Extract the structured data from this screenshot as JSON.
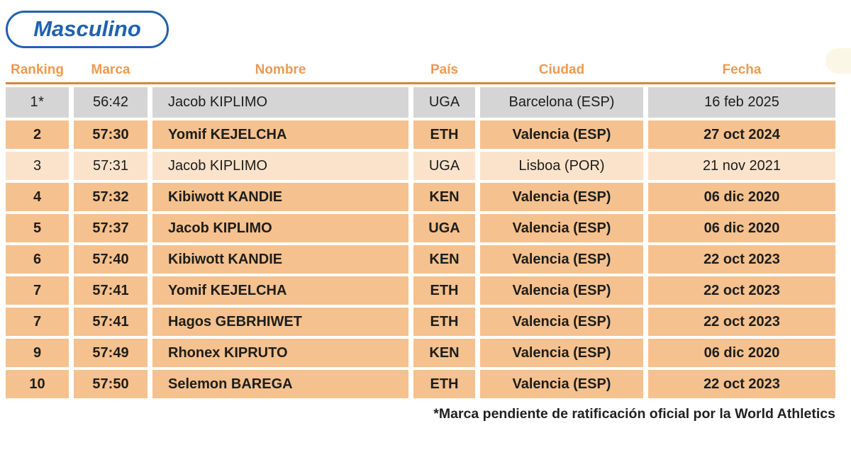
{
  "title": {
    "label": "Masculino"
  },
  "table": {
    "columns": [
      {
        "key": "ranking",
        "label": "Ranking"
      },
      {
        "key": "marca",
        "label": "Marca"
      },
      {
        "key": "nombre",
        "label": "Nombre"
      },
      {
        "key": "pais",
        "label": "País"
      },
      {
        "key": "ciudad",
        "label": "Ciudad"
      },
      {
        "key": "fecha",
        "label": "Fecha"
      }
    ],
    "rows": [
      {
        "variant": "record",
        "ranking": "1*",
        "marca": "56:42",
        "nombre": "Jacob KIPLIMO",
        "pais": "UGA",
        "ciudad": "Barcelona (ESP)",
        "fecha": "16 feb 2025"
      },
      {
        "variant": "strong",
        "ranking": "2",
        "marca": "57:30",
        "nombre": "Yomif KEJELCHA",
        "pais": "ETH",
        "ciudad": "Valencia (ESP)",
        "fecha": "27 oct 2024"
      },
      {
        "variant": "soft",
        "ranking": "3",
        "marca": "57:31",
        "nombre": "Jacob KIPLIMO",
        "pais": "UGA",
        "ciudad": "Lisboa (POR)",
        "fecha": "21 nov 2021"
      },
      {
        "variant": "strong",
        "ranking": "4",
        "marca": "57:32",
        "nombre": "Kibiwott KANDIE",
        "pais": "KEN",
        "ciudad": "Valencia (ESP)",
        "fecha": "06 dic 2020"
      },
      {
        "variant": "strong",
        "ranking": "5",
        "marca": "57:37",
        "nombre": "Jacob KIPLIMO",
        "pais": "UGA",
        "ciudad": "Valencia (ESP)",
        "fecha": "06 dic 2020"
      },
      {
        "variant": "strong",
        "ranking": "6",
        "marca": "57:40",
        "nombre": "Kibiwott KANDIE",
        "pais": "KEN",
        "ciudad": "Valencia (ESP)",
        "fecha": "22 oct 2023"
      },
      {
        "variant": "strong",
        "ranking": "7",
        "marca": "57:41",
        "nombre": "Yomif KEJELCHA",
        "pais": "ETH",
        "ciudad": "Valencia (ESP)",
        "fecha": "22 oct 2023"
      },
      {
        "variant": "strong",
        "ranking": "7",
        "marca": "57:41",
        "nombre": "Hagos GEBRHIWET",
        "pais": "ETH",
        "ciudad": "Valencia (ESP)",
        "fecha": "22 oct 2023"
      },
      {
        "variant": "strong",
        "ranking": "9",
        "marca": "57:49",
        "nombre": "Rhonex KIPRUTO",
        "pais": "KEN",
        "ciudad": "Valencia (ESP)",
        "fecha": "06 dic 2020"
      },
      {
        "variant": "strong",
        "ranking": "10",
        "marca": "57:50",
        "nombre": "Selemon BAREGA",
        "pais": "ETH",
        "ciudad": "Valencia (ESP)",
        "fecha": "22 oct 2023"
      }
    ]
  },
  "footnote": "*Marca pendiente de ratificación oficial por la World Athletics",
  "colors": {
    "title_blue": "#2161ad",
    "header_orange": "#ec9a52",
    "rule_orange": "#db8434",
    "row_record_gray": "#d5d5d6",
    "row_strong_orange": "#f5c18e",
    "row_soft_cream": "#fbe3cb",
    "cell_text": "#1d1d1b"
  },
  "chart_data": {
    "type": "table",
    "title": "Masculino",
    "columns": [
      "Ranking",
      "Marca",
      "Nombre",
      "País",
      "Ciudad",
      "Fecha"
    ],
    "rows": [
      [
        "1*",
        "56:42",
        "Jacob KIPLIMO",
        "UGA",
        "Barcelona (ESP)",
        "16 feb 2025"
      ],
      [
        "2",
        "57:30",
        "Yomif KEJELCHA",
        "ETH",
        "Valencia (ESP)",
        "27 oct 2024"
      ],
      [
        "3",
        "57:31",
        "Jacob KIPLIMO",
        "UGA",
        "Lisboa (POR)",
        "21 nov 2021"
      ],
      [
        "4",
        "57:32",
        "Kibiwott KANDIE",
        "KEN",
        "Valencia (ESP)",
        "06 dic 2020"
      ],
      [
        "5",
        "57:37",
        "Jacob KIPLIMO",
        "UGA",
        "Valencia (ESP)",
        "06 dic 2020"
      ],
      [
        "6",
        "57:40",
        "Kibiwott KANDIE",
        "KEN",
        "Valencia (ESP)",
        "22 oct 2023"
      ],
      [
        "7",
        "57:41",
        "Yomif KEJELCHA",
        "ETH",
        "Valencia (ESP)",
        "22 oct 2023"
      ],
      [
        "7",
        "57:41",
        "Hagos GEBRHIWET",
        "ETH",
        "Valencia (ESP)",
        "22 oct 2023"
      ],
      [
        "9",
        "57:49",
        "Rhonex KIPRUTO",
        "KEN",
        "Valencia (ESP)",
        "06 dic 2020"
      ],
      [
        "10",
        "57:50",
        "Selemon BAREGA",
        "ETH",
        "Valencia (ESP)",
        "22 oct 2023"
      ]
    ],
    "footnote": "*Marca pendiente de ratificación oficial por la World Athletics"
  }
}
